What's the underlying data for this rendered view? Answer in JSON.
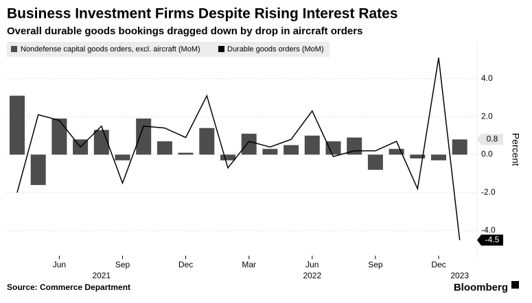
{
  "chart_data": {
    "type": "bar+line",
    "title": "Business Investment Firms Despite Rising Interest Rates",
    "subtitle": "Overall durable goods bookings dragged down by drop in aircraft orders",
    "categories": [
      null,
      null,
      "Jun",
      null,
      null,
      "Sep",
      null,
      null,
      "Dec",
      null,
      null,
      "Mar",
      null,
      null,
      "Jun",
      null,
      null,
      "Sep",
      null,
      null,
      "Dec",
      null
    ],
    "years": [
      "2021",
      "2022",
      "2023"
    ],
    "series": [
      {
        "name": "Nondefense capital goods orders, excl. aircraft (MoM)",
        "type": "bar",
        "color": "#4d4d4d",
        "values": [
          3.1,
          -1.6,
          1.9,
          0.8,
          1.3,
          -0.3,
          1.9,
          0.7,
          0.1,
          1.4,
          -0.3,
          1.1,
          0.3,
          0.5,
          1.0,
          0.7,
          0.9,
          -0.8,
          0.3,
          -0.2,
          -0.3,
          0.8
        ]
      },
      {
        "name": "Durable goods orders (MoM)",
        "type": "line",
        "color": "#000000",
        "values": [
          -2.0,
          2.1,
          1.8,
          0.4,
          1.5,
          -1.5,
          1.5,
          1.4,
          0.9,
          3.1,
          -0.7,
          0.7,
          0.4,
          0.8,
          2.3,
          -0.1,
          0.2,
          0.2,
          0.7,
          -1.8,
          5.1,
          -4.5
        ]
      }
    ],
    "ylabel": "Percent",
    "ylim": [
      -5.5,
      5.9
    ],
    "yticks": [
      {
        "value": -4,
        "label": "-4.0"
      },
      {
        "value": -2,
        "label": "-2.0"
      },
      {
        "value": 0,
        "label": "0.0"
      },
      {
        "value": 2,
        "label": "2.0"
      },
      {
        "value": 4,
        "label": "4.0"
      }
    ],
    "grid": true,
    "source": "Source: Commerce Department",
    "brand": "Bloomberg"
  }
}
